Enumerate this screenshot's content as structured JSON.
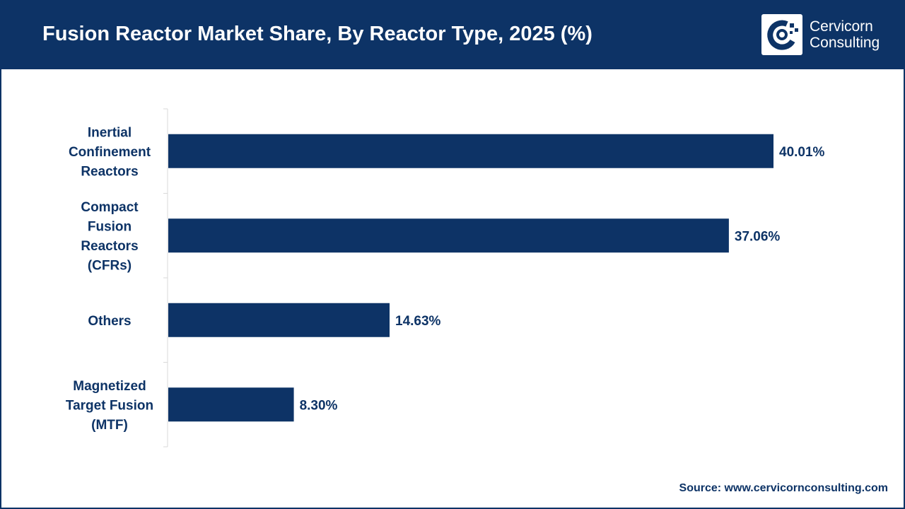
{
  "header": {
    "title": "Fusion Reactor Market Share, By Reactor Type, 2025 (%)",
    "logo_line1": "Cervicorn",
    "logo_line2": "Consulting",
    "logo_icon": "cervicorn-logo-icon"
  },
  "colors": {
    "brand": "#0d3366",
    "bar": "#0d3366",
    "background": "#ffffff"
  },
  "chart_data": {
    "type": "bar",
    "orientation": "horizontal",
    "categories": [
      [
        "Inertial",
        "Confinement",
        "Reactors"
      ],
      [
        "Compact",
        "Fusion",
        "Reactors",
        "(CFRs)"
      ],
      [
        "Others"
      ],
      [
        "Magnetized",
        "Target Fusion",
        "(MTF)"
      ]
    ],
    "values": [
      40.01,
      37.06,
      14.63,
      8.3
    ],
    "value_labels": [
      "40.01%",
      "37.06%",
      "14.63%",
      "8.30%"
    ],
    "xlim": [
      0,
      40.01
    ],
    "grid": false,
    "legend": "none"
  },
  "footer": {
    "source": "Source: www.cervicornconsulting.com"
  }
}
